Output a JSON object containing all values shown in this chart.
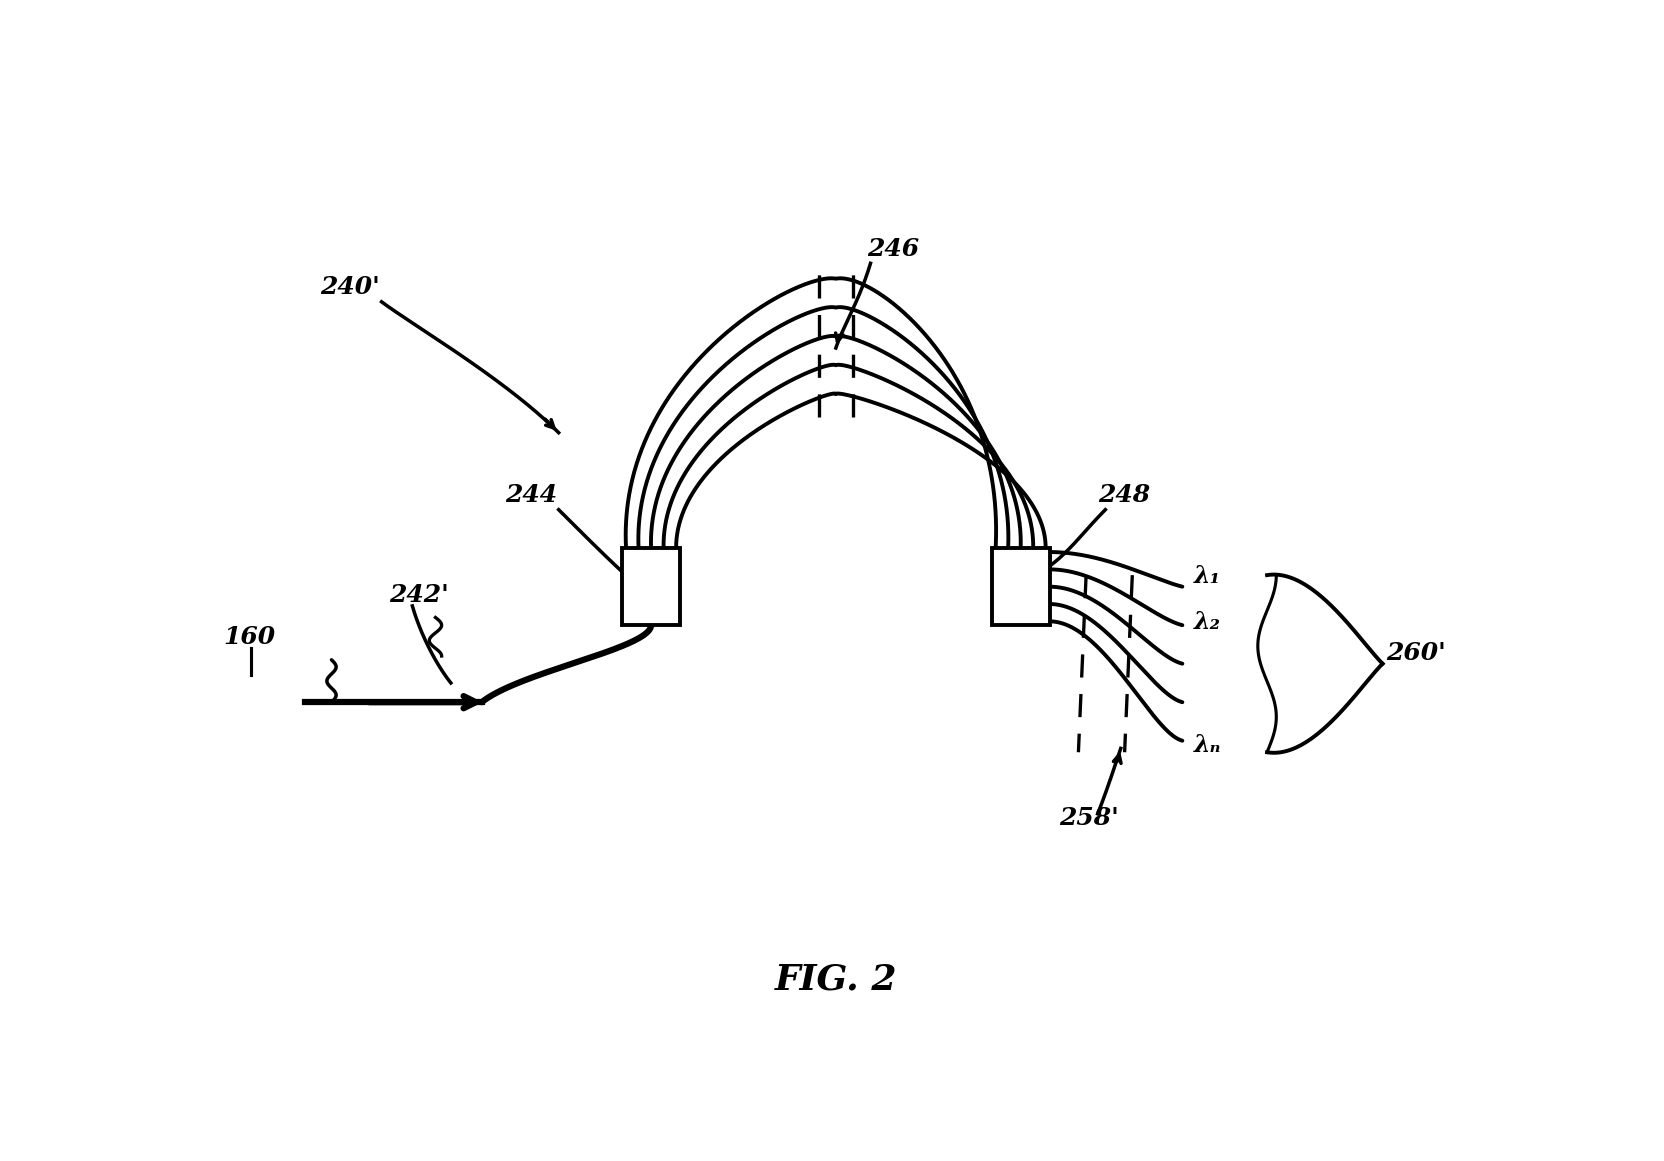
{
  "fig_label": "FIG. 2",
  "labels": {
    "240prime": "240'",
    "246": "246",
    "244": "244",
    "248": "248",
    "160": "160",
    "242prime": "242'",
    "258prime": "258'",
    "260prime": "260'",
    "lambda1": "λ₁",
    "lambda2": "λ₂",
    "lambdan": "λₙ"
  },
  "background_color": "#ffffff",
  "line_color": "#000000",
  "line_width": 2.8,
  "fig_label_fontsize": 26,
  "annotation_fontsize": 18
}
